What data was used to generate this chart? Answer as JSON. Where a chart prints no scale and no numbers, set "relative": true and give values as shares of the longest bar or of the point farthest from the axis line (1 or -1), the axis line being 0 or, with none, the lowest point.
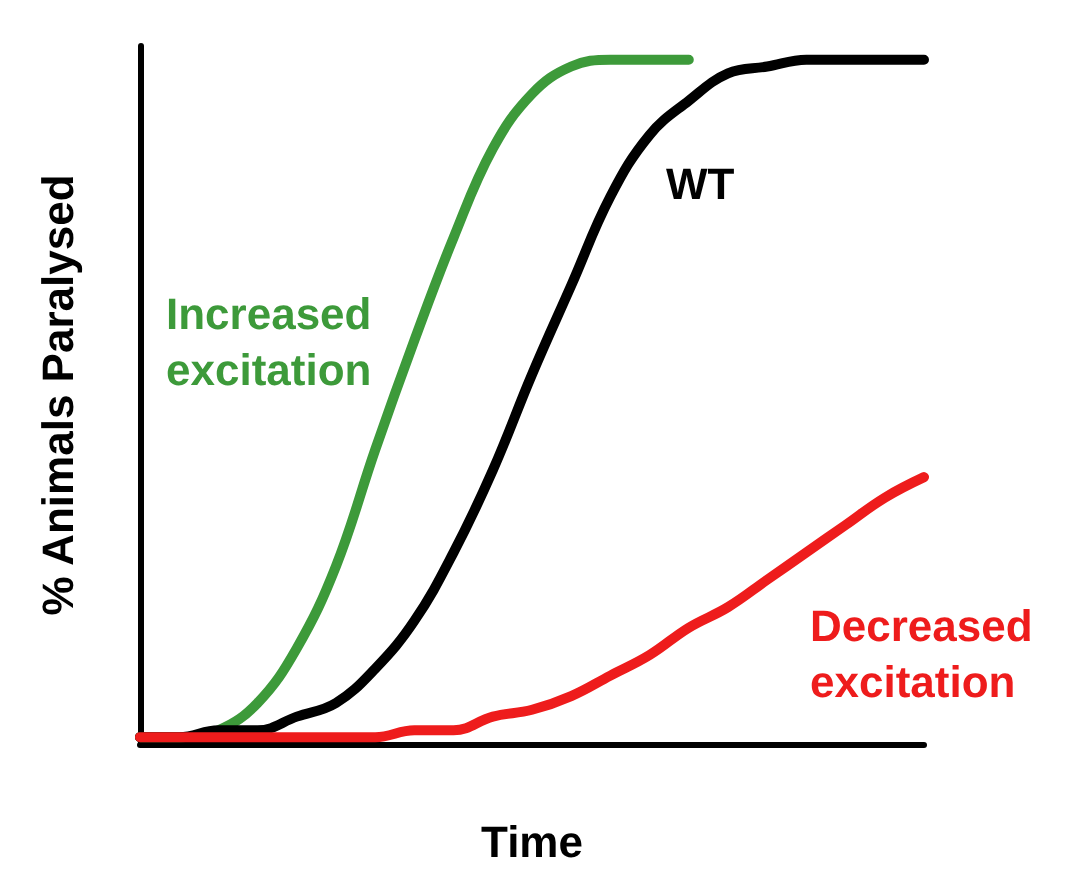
{
  "chart_data": {
    "type": "line",
    "relative": true,
    "xlabel": "Time",
    "ylabel": "% Animals Paralysed",
    "categories": [
      null,
      null,
      null,
      null,
      null,
      null,
      null,
      null,
      null,
      null,
      null,
      null,
      null,
      null,
      null,
      null,
      null,
      null,
      null,
      null,
      null
    ],
    "series": [
      {
        "name": "Increased excitation",
        "color": "#3d9a3a",
        "values": [
          0.01,
          0.01,
          0.02,
          0.06,
          0.14,
          0.26,
          0.43,
          0.59,
          0.74,
          0.87,
          0.95,
          0.99,
          1,
          1,
          1,
          null,
          null,
          null,
          null,
          null,
          null
        ]
      },
      {
        "name": "WT",
        "color": "#000000",
        "values": [
          0.01,
          0.01,
          0.02,
          0.02,
          0.04,
          0.06,
          0.11,
          0.18,
          0.28,
          0.4,
          0.54,
          0.67,
          0.8,
          0.89,
          0.94,
          0.98,
          0.99,
          1,
          1,
          1,
          1
        ]
      },
      {
        "name": "Decreased excitation",
        "color": "#ee1c1c",
        "values": [
          0.01,
          0.01,
          0.01,
          0.01,
          0.01,
          0.01,
          0.01,
          0.02,
          0.02,
          0.04,
          0.05,
          0.07,
          0.1,
          0.13,
          0.17,
          0.2,
          0.24,
          0.28,
          0.32,
          0.36,
          0.39
        ]
      }
    ],
    "legend": false,
    "grid": false,
    "marker": "none",
    "line_style": "solid"
  }
}
